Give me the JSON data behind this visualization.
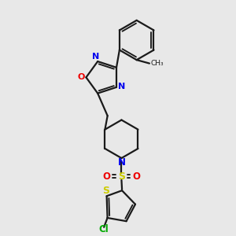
{
  "background_color": "#e8e8e8",
  "bond_color": "#1a1a1a",
  "N_color": "#0000ee",
  "O_color": "#ee0000",
  "S_color": "#cccc00",
  "Cl_color": "#00aa00",
  "line_width": 1.6,
  "fig_w": 3.0,
  "fig_h": 3.0,
  "dpi": 100,
  "xlim": [
    0,
    10
  ],
  "ylim": [
    0,
    10
  ]
}
